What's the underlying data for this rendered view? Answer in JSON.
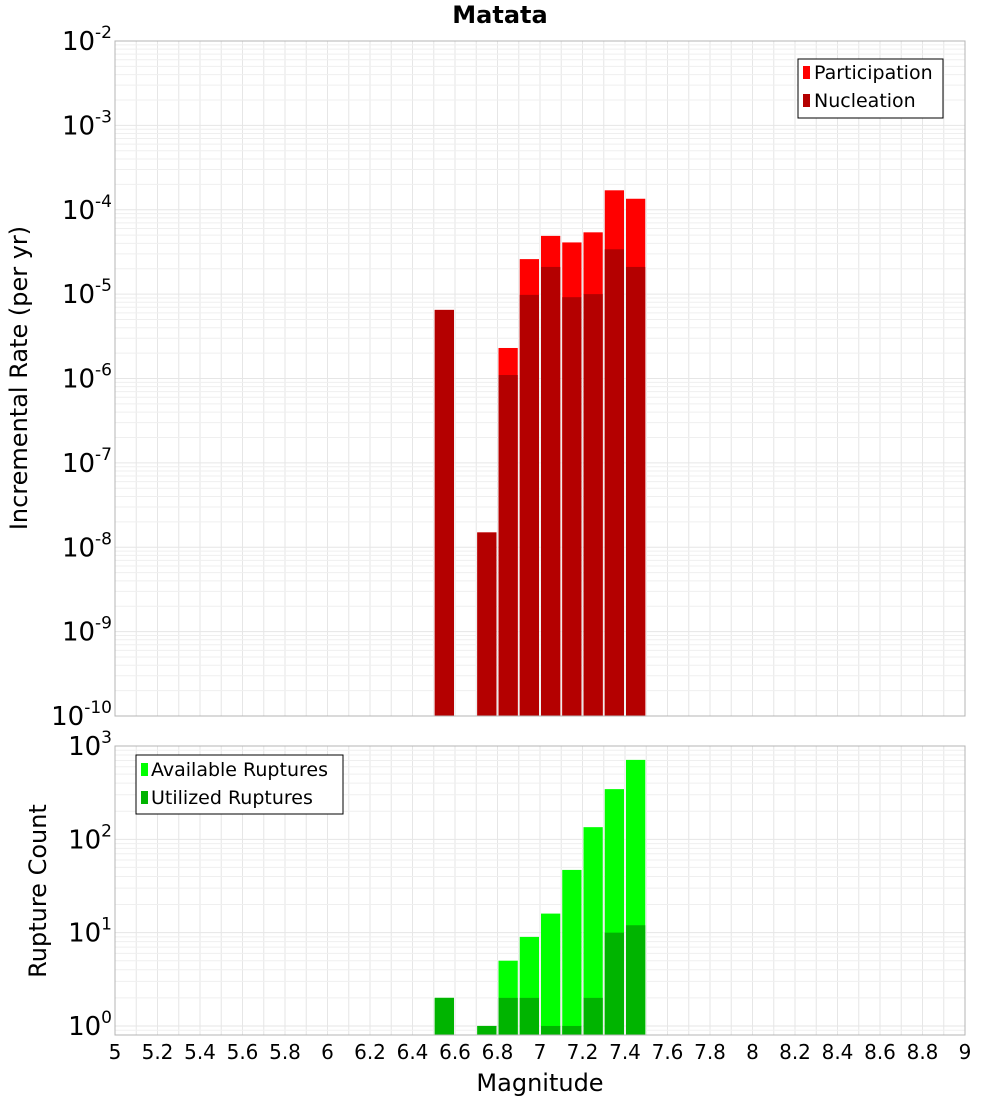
{
  "chart_data": [
    {
      "type": "bar",
      "title": "Matata",
      "xlabel": "",
      "ylabel": "Incremental Rate (per yr)",
      "y_scale": "log",
      "ylim": [
        1e-10,
        0.01
      ],
      "xlim": [
        5,
        9
      ],
      "yticks": [
        {
          "base": "10",
          "exp": "-10",
          "value": 1e-10
        },
        {
          "base": "10",
          "exp": "-9",
          "value": 1e-09
        },
        {
          "base": "10",
          "exp": "-8",
          "value": 1e-08
        },
        {
          "base": "10",
          "exp": "-7",
          "value": 1e-07
        },
        {
          "base": "10",
          "exp": "-6",
          "value": 1e-06
        },
        {
          "base": "10",
          "exp": "-5",
          "value": 1e-05
        },
        {
          "base": "10",
          "exp": "-4",
          "value": 0.0001
        },
        {
          "base": "10",
          "exp": "-3",
          "value": 0.001
        },
        {
          "base": "10",
          "exp": "-2",
          "value": 0.01
        }
      ],
      "grid": true,
      "legend_position": "top-right",
      "bin_width": 0.1,
      "x": [
        6.55,
        6.75,
        6.85,
        6.95,
        7.05,
        7.15,
        7.25,
        7.35,
        7.45
      ],
      "series": [
        {
          "name": "Participation",
          "color": "#ff0000",
          "values": [
            6.5e-06,
            1.5e-08,
            2.3e-06,
            2.6e-05,
            4.9e-05,
            4.1e-05,
            5.4e-05,
            0.00017,
            0.000135
          ]
        },
        {
          "name": "Nucleation",
          "color": "#b40000",
          "values": [
            6.5e-06,
            1.5e-08,
            1.1e-06,
            9.8e-06,
            2.1e-05,
            9.2e-06,
            1e-05,
            3.4e-05,
            2.1e-05
          ]
        }
      ]
    },
    {
      "type": "bar",
      "title": "",
      "xlabel": "Magnitude",
      "ylabel": "Rupture Count",
      "y_scale": "log",
      "ylim": [
        0.8,
        1000
      ],
      "xlim": [
        5,
        9
      ],
      "yticks": [
        {
          "base": "10",
          "exp": "0",
          "value": 1
        },
        {
          "base": "10",
          "exp": "1",
          "value": 10
        },
        {
          "base": "10",
          "exp": "2",
          "value": 100
        },
        {
          "base": "10",
          "exp": "3",
          "value": 1000
        }
      ],
      "xticks": [
        "5",
        "5.2",
        "5.4",
        "5.6",
        "5.8",
        "6",
        "6.2",
        "6.4",
        "6.6",
        "6.8",
        "7",
        "7.2",
        "7.4",
        "7.6",
        "7.8",
        "8",
        "8.2",
        "8.4",
        "8.6",
        "8.8",
        "9"
      ],
      "grid": true,
      "legend_position": "top-left",
      "bin_width": 0.1,
      "x": [
        6.55,
        6.75,
        6.85,
        6.95,
        7.05,
        7.15,
        7.25,
        7.35,
        7.45
      ],
      "series": [
        {
          "name": "Available Ruptures",
          "color": "#00ff00",
          "values": [
            2,
            1,
            5,
            9,
            16,
            47,
            135,
            345,
            710
          ]
        },
        {
          "name": "Utilized Ruptures",
          "color": "#00b400",
          "values": [
            2,
            1,
            2,
            2,
            1,
            1,
            2,
            10,
            12
          ]
        }
      ]
    }
  ]
}
